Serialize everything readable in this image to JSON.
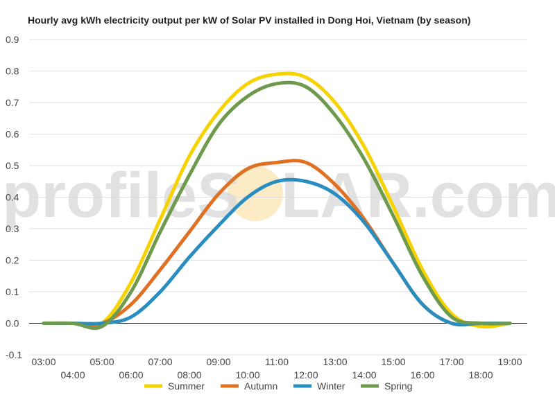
{
  "chart_data": {
    "type": "line",
    "title": "Hourly avg kWh electricity output per kW of Solar PV installed in Dong Hoi, Vietnam (by season)",
    "xlabel": "",
    "ylabel": "",
    "x": [
      "03:00",
      "04:00",
      "05:00",
      "06:00",
      "07:00",
      "08:00",
      "09:00",
      "10:00",
      "11:00",
      "12:00",
      "13:00",
      "14:00",
      "15:00",
      "16:00",
      "17:00",
      "18:00",
      "19:00"
    ],
    "ylim": [
      -0.1,
      0.9
    ],
    "yticks": [
      "0.9",
      "0.8",
      "0.7",
      "0.6",
      "0.5",
      "0.4",
      "0.3",
      "0.2",
      "0.1",
      "0.0",
      "-0.1"
    ],
    "grid": true,
    "legend_position": "bottom",
    "series": [
      {
        "name": "Summer",
        "color": "#f5d200",
        "values": [
          0.0,
          0.0,
          0.0,
          0.13,
          0.33,
          0.53,
          0.67,
          0.76,
          0.79,
          0.78,
          0.7,
          0.56,
          0.37,
          0.17,
          0.03,
          -0.01,
          0.0
        ]
      },
      {
        "name": "Autumn",
        "color": "#e07024",
        "values": [
          0.0,
          0.0,
          0.0,
          0.06,
          0.17,
          0.29,
          0.41,
          0.49,
          0.51,
          0.51,
          0.44,
          0.33,
          0.19,
          0.06,
          0.0,
          0.0,
          0.0
        ]
      },
      {
        "name": "Winter",
        "color": "#2a8dbf",
        "values": [
          0.0,
          0.0,
          0.0,
          0.02,
          0.1,
          0.21,
          0.31,
          0.4,
          0.45,
          0.45,
          0.41,
          0.32,
          0.19,
          0.06,
          0.0,
          0.0,
          0.0
        ]
      },
      {
        "name": "Spring",
        "color": "#6e9a4e",
        "values": [
          0.0,
          0.0,
          -0.01,
          0.1,
          0.29,
          0.47,
          0.63,
          0.72,
          0.76,
          0.75,
          0.66,
          0.52,
          0.34,
          0.15,
          0.02,
          0.0,
          0.0
        ]
      }
    ]
  },
  "watermark": {
    "left": "profileS",
    "right": "LAR.com",
    "sun_color": "#f6c55a"
  }
}
